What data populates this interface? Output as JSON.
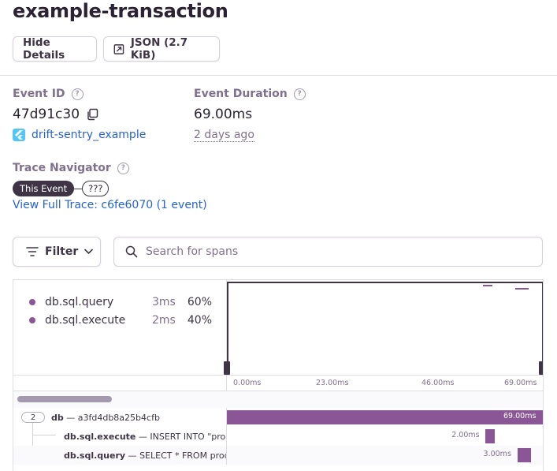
{
  "header": {
    "title": "example-transaction",
    "hide_details_label": "Hide Details",
    "json_label": "JSON (2.7 KiB)"
  },
  "event": {
    "id_label": "Event ID",
    "id_value": "47d91c30",
    "duration_label": "Event Duration",
    "duration_value": "69.00ms",
    "project_name": "drift-sentry_example",
    "time_ago": "2 days ago"
  },
  "trace": {
    "label": "Trace Navigator",
    "this_event": "This Event",
    "unknown": "???",
    "full_trace_link": "View Full Trace: c6fe6070 (1 event)"
  },
  "toolbar": {
    "filter_label": "Filter",
    "search_placeholder": "Search for spans"
  },
  "ops_breakdown": [
    {
      "name": "db.sql.query",
      "duration": "3ms",
      "percent": "60%"
    },
    {
      "name": "db.sql.execute",
      "duration": "2ms",
      "percent": "40%"
    }
  ],
  "timeline": {
    "ticks": [
      "0.00ms",
      "23.00ms",
      "46.00ms",
      "69.00ms"
    ],
    "total_ms": 69
  },
  "spans": [
    {
      "count": "2",
      "op": "db",
      "desc": "a3fd4db8a25b4cfb",
      "duration": "69.00ms",
      "start_ms": 0,
      "dur_ms": 69
    },
    {
      "op": "db.sql.execute",
      "desc": "INSERT INTO \"products\" (name, price, created_at) VALUES (?, ?, ?)",
      "duration": "2.00ms",
      "start_ms": 56.2,
      "dur_ms": 2
    },
    {
      "op": "db.sql.query",
      "desc": "SELECT * FROM products",
      "duration": "3.00ms",
      "start_ms": 63.1,
      "dur_ms": 3
    }
  ],
  "colors": {
    "span_bar": "#8a5696",
    "link": "#2562d4",
    "dark": "#3e3446"
  },
  "icons": [
    "open-external-icon",
    "help-icon",
    "copy-icon",
    "flutter-icon",
    "filter-icon",
    "chevron-down-icon",
    "search-icon"
  ]
}
